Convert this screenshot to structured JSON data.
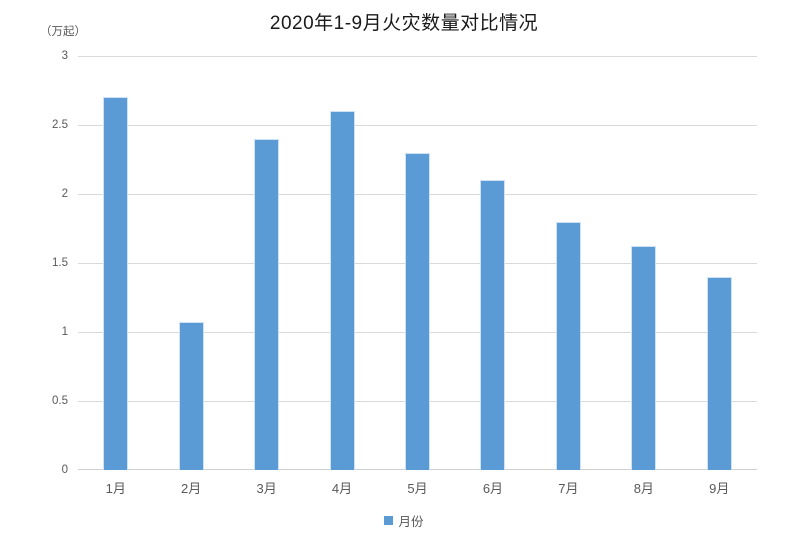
{
  "chart_data": {
    "type": "bar",
    "title": "2020年1-9月火灾数量对比情况",
    "unit_label": "（万起）",
    "categories": [
      "1月",
      "2月",
      "3月",
      "4月",
      "5月",
      "6月",
      "7月",
      "8月",
      "9月"
    ],
    "series": [
      {
        "name": "月份",
        "values": [
          2.7,
          1.07,
          2.4,
          2.6,
          2.3,
          2.1,
          1.8,
          1.62,
          1.4
        ]
      }
    ],
    "ylim": [
      0,
      3
    ],
    "ytick_step": 0.5,
    "ytick_labels": [
      "0",
      "0.5",
      "1",
      "1.5",
      "2",
      "2.5",
      "3"
    ],
    "grid": true,
    "legend_position": "bottom",
    "colors": {
      "bar_fill": "#5B9BD5",
      "bar_edge": "#cfe2f3",
      "gridline": "#d9d9d9",
      "axis_line": "#d0d0d0",
      "tick_label": "#595959",
      "title": "#1a1a1a",
      "background": "#ffffff"
    }
  }
}
